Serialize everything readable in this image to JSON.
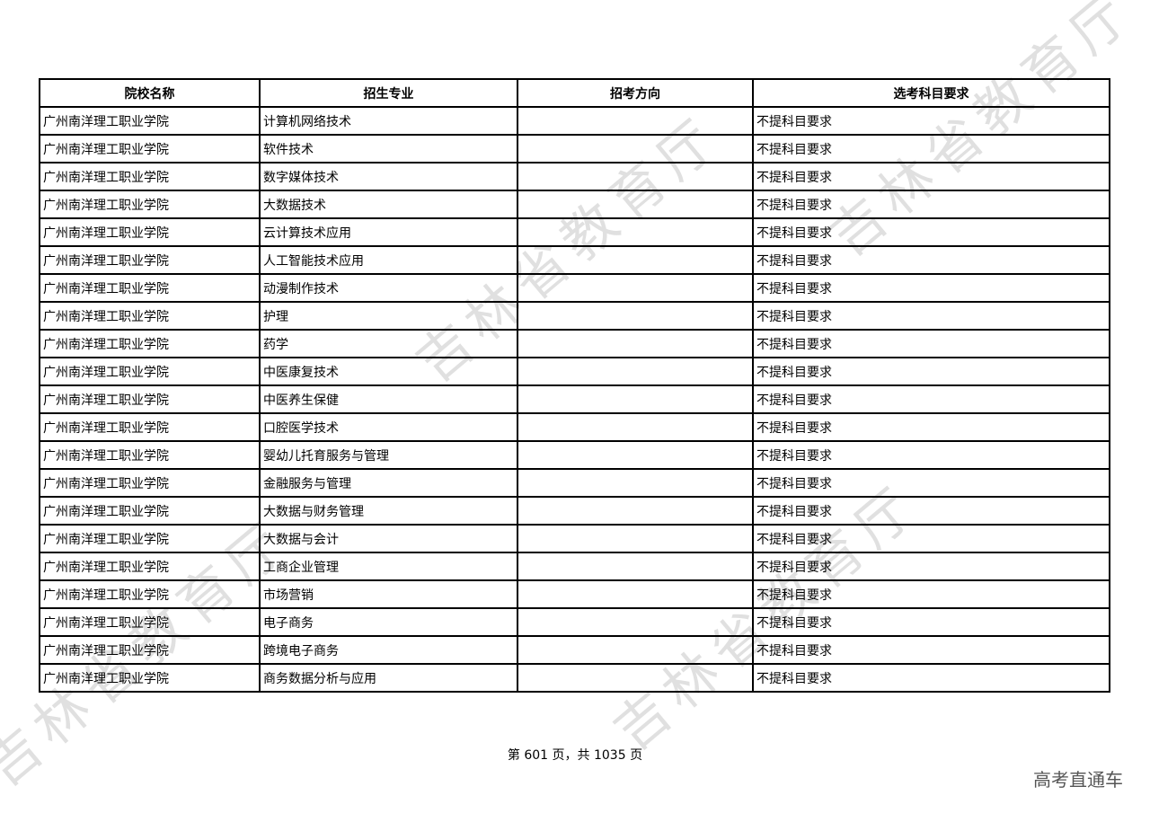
{
  "table": {
    "headers": [
      "院校名称",
      "招生专业",
      "招考方向",
      "选考科目要求"
    ],
    "rows": [
      [
        "广州南洋理工职业学院",
        "计算机网络技术",
        "",
        "不提科目要求"
      ],
      [
        "广州南洋理工职业学院",
        "软件技术",
        "",
        "不提科目要求"
      ],
      [
        "广州南洋理工职业学院",
        "数字媒体技术",
        "",
        "不提科目要求"
      ],
      [
        "广州南洋理工职业学院",
        "大数据技术",
        "",
        "不提科目要求"
      ],
      [
        "广州南洋理工职业学院",
        "云计算技术应用",
        "",
        "不提科目要求"
      ],
      [
        "广州南洋理工职业学院",
        "人工智能技术应用",
        "",
        "不提科目要求"
      ],
      [
        "广州南洋理工职业学院",
        "动漫制作技术",
        "",
        "不提科目要求"
      ],
      [
        "广州南洋理工职业学院",
        "护理",
        "",
        "不提科目要求"
      ],
      [
        "广州南洋理工职业学院",
        "药学",
        "",
        "不提科目要求"
      ],
      [
        "广州南洋理工职业学院",
        "中医康复技术",
        "",
        "不提科目要求"
      ],
      [
        "广州南洋理工职业学院",
        "中医养生保健",
        "",
        "不提科目要求"
      ],
      [
        "广州南洋理工职业学院",
        "口腔医学技术",
        "",
        "不提科目要求"
      ],
      [
        "广州南洋理工职业学院",
        "婴幼儿托育服务与管理",
        "",
        "不提科目要求"
      ],
      [
        "广州南洋理工职业学院",
        "金融服务与管理",
        "",
        "不提科目要求"
      ],
      [
        "广州南洋理工职业学院",
        "大数据与财务管理",
        "",
        "不提科目要求"
      ],
      [
        "广州南洋理工职业学院",
        "大数据与会计",
        "",
        "不提科目要求"
      ],
      [
        "广州南洋理工职业学院",
        "工商企业管理",
        "",
        "不提科目要求"
      ],
      [
        "广州南洋理工职业学院",
        "市场营销",
        "",
        "不提科目要求"
      ],
      [
        "广州南洋理工职业学院",
        "电子商务",
        "",
        "不提科目要求"
      ],
      [
        "广州南洋理工职业学院",
        "跨境电子商务",
        "",
        "不提科目要求"
      ],
      [
        "广州南洋理工职业学院",
        "商务数据分析与应用",
        "",
        "不提科目要求"
      ]
    ]
  },
  "footer": {
    "page": "第 601 页，共 1035 页"
  },
  "brand": "高考直通车",
  "watermark": "吉林省教育厅"
}
